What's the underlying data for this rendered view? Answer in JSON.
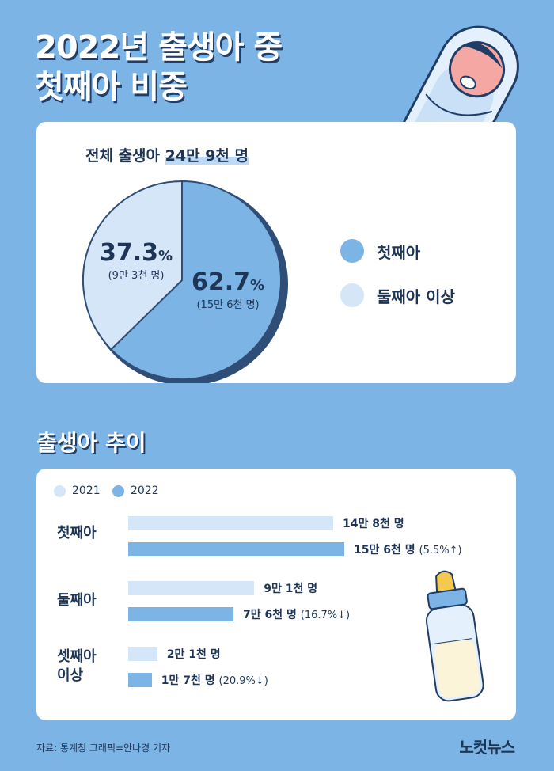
{
  "header": {
    "line1": "2022년 출생아 중",
    "line2": "첫째아 비중"
  },
  "pie": {
    "total_prefix": "전체 출생아 ",
    "total_value": "24만 9천 명",
    "slices": [
      {
        "name": "첫째아",
        "pct": 62.7,
        "pct_label": "62.7",
        "unit": "%",
        "count_label": "(15만 6천 명)",
        "color": "#7db4e6"
      },
      {
        "name": "둘째아 이상",
        "pct": 37.3,
        "pct_label": "37.3",
        "unit": "%",
        "count_label": "(9만 3천 명)",
        "color": "#d4e6f8"
      }
    ]
  },
  "trend": {
    "title": "출생아 추이",
    "legend": [
      {
        "label": "2021",
        "color": "#d4e6f8"
      },
      {
        "label": "2022",
        "color": "#7db4e6"
      }
    ],
    "categories": [
      {
        "label_lines": [
          "첫째아"
        ],
        "bars": [
          {
            "year": "2021",
            "value": 14.8,
            "label": "14만 8천 명",
            "change": ""
          },
          {
            "year": "2022",
            "value": 15.6,
            "label": "15만 6천 명",
            "change": "(5.5%↑)"
          }
        ]
      },
      {
        "label_lines": [
          "둘째아"
        ],
        "bars": [
          {
            "year": "2021",
            "value": 9.1,
            "label": "9만 1천 명",
            "change": ""
          },
          {
            "year": "2022",
            "value": 7.6,
            "label": "7만 6천 명",
            "change": "(16.7%↓)"
          }
        ]
      },
      {
        "label_lines": [
          "셋째아",
          "이상"
        ],
        "bars": [
          {
            "year": "2021",
            "value": 2.1,
            "label": "2만 1천 명",
            "change": ""
          },
          {
            "year": "2022",
            "value": 1.7,
            "label": "1만 7천 명",
            "change": "(20.9%↓)"
          }
        ]
      }
    ]
  },
  "chart_data": [
    {
      "type": "pie",
      "title": "전체 출생아 24만 9천 명",
      "categories": [
        "첫째아",
        "둘째아 이상"
      ],
      "values": [
        62.7,
        37.3
      ],
      "unit": "%",
      "counts": [
        "15만 6천 명",
        "9만 3천 명"
      ],
      "legend": "right"
    },
    {
      "type": "bar",
      "title": "출생아 추이",
      "orientation": "horizontal",
      "categories": [
        "첫째아",
        "둘째아",
        "셋째아 이상"
      ],
      "series": [
        {
          "name": "2021",
          "values": [
            14.8,
            9.1,
            2.1
          ]
        },
        {
          "name": "2022",
          "values": [
            15.6,
            7.6,
            1.7
          ]
        }
      ],
      "unit": "만 명",
      "annotations": [
        "5.5%↑",
        "16.7%↓",
        "20.9%↓"
      ],
      "legend": "top-left"
    }
  ],
  "footer": {
    "source": "자료: 통계청   그래픽=안나경 기자",
    "logo": "노컷뉴스"
  }
}
